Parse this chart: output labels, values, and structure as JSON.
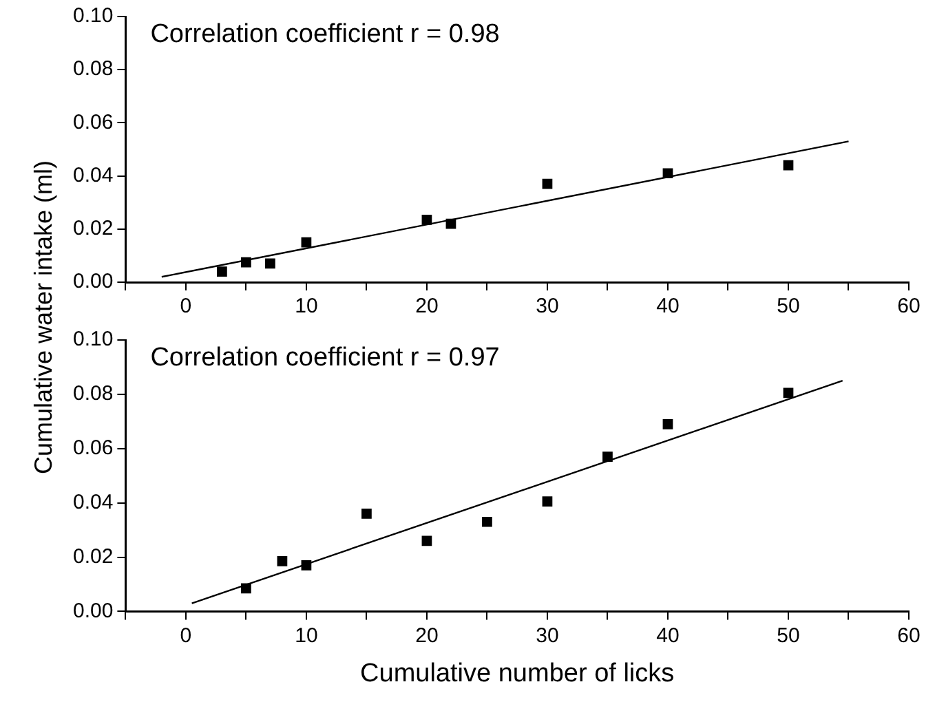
{
  "chart_data": [
    {
      "type": "scatter",
      "ylabel": "Cumulative water intake (ml)",
      "annotations": [
        "Correlation coefficient r = 0.98"
      ],
      "grid": false,
      "xlim": [
        -5,
        60
      ],
      "xticks": [
        {
          "value": -5,
          "label": null
        },
        0,
        {
          "value": 5,
          "label": null
        },
        10,
        {
          "value": 15,
          "label": null
        },
        20,
        {
          "value": 25,
          "label": null
        },
        30,
        {
          "value": 35,
          "label": null
        },
        40,
        {
          "value": 45,
          "label": null
        },
        50,
        {
          "value": 55,
          "label": null
        },
        60
      ],
      "ylim": [
        0,
        0.1
      ],
      "yticks": [
        {
          "value": 0,
          "label": "0.00"
        },
        {
          "value": 0.02,
          "label": "0.02"
        },
        {
          "value": 0.04,
          "label": "0.04"
        },
        {
          "value": 0.06,
          "label": "0.06"
        },
        {
          "value": 0.08,
          "label": "0.08"
        },
        {
          "value": 0.1,
          "label": "0.10"
        }
      ],
      "series": [
        {
          "type": "scatter",
          "marker": "square",
          "color": "#000000",
          "x": [
            3,
            5,
            7,
            10,
            20,
            22,
            30,
            40,
            50
          ],
          "values": [
            0.004,
            0.0075,
            0.007,
            0.015,
            0.0235,
            0.022,
            0.037,
            0.041,
            0.044
          ]
        },
        {
          "type": "line",
          "color": "#000000",
          "x": [
            -2,
            55
          ],
          "values": [
            0.002,
            0.053
          ]
        }
      ]
    },
    {
      "type": "scatter",
      "xlabel": "Cumulative number of licks",
      "annotations": [
        "Correlation coefficient r = 0.97"
      ],
      "grid": false,
      "xlim": [
        -5,
        60
      ],
      "xticks": [
        {
          "value": -5,
          "label": null
        },
        0,
        {
          "value": 5,
          "label": null
        },
        10,
        {
          "value": 15,
          "label": null
        },
        20,
        {
          "value": 25,
          "label": null
        },
        30,
        {
          "value": 35,
          "label": null
        },
        40,
        {
          "value": 45,
          "label": null
        },
        50,
        {
          "value": 55,
          "label": null
        },
        60
      ],
      "ylim": [
        0,
        0.1
      ],
      "yticks": [
        {
          "value": 0,
          "label": "0.00"
        },
        {
          "value": 0.02,
          "label": "0.02"
        },
        {
          "value": 0.04,
          "label": "0.04"
        },
        {
          "value": 0.06,
          "label": "0.06"
        },
        {
          "value": 0.08,
          "label": "0.08"
        },
        {
          "value": 0.1,
          "label": "0.10"
        }
      ],
      "series": [
        {
          "type": "scatter",
          "marker": "square",
          "color": "#000000",
          "x": [
            5,
            8,
            10,
            15,
            20,
            25,
            30,
            35,
            40,
            50
          ],
          "values": [
            0.0085,
            0.0185,
            0.017,
            0.036,
            0.026,
            0.033,
            0.0405,
            0.057,
            0.069,
            0.0805
          ]
        },
        {
          "type": "line",
          "color": "#000000",
          "x": [
            0.5,
            54.5
          ],
          "values": [
            0.003,
            0.085
          ]
        }
      ]
    }
  ]
}
